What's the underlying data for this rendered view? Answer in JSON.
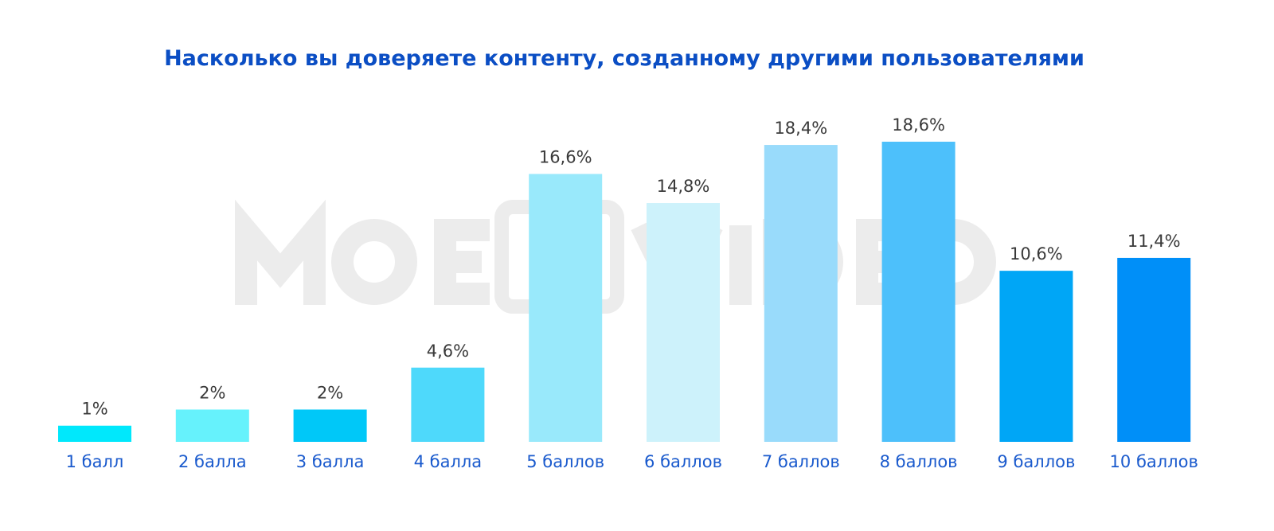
{
  "chart_data": {
    "type": "bar",
    "title": "Насколько вы доверяете контенту, созданному другими пользователями",
    "categories": [
      "1 балл",
      "2 балла",
      "3 балла",
      "4 балла",
      "5 баллов",
      "6 баллов",
      "7 баллов",
      "8 баллов",
      "9 баллов",
      "10 баллов"
    ],
    "values": [
      1,
      2,
      2,
      4.6,
      16.6,
      14.8,
      18.4,
      18.6,
      10.6,
      11.4
    ],
    "value_labels": [
      "1%",
      "2%",
      "2%",
      "4,6%",
      "16,6%",
      "14,8%",
      "18,4%",
      "18,6%",
      "10,6%",
      "11,4%"
    ],
    "colors": [
      "#00e8fc",
      "#66f2fc",
      "#00c8f8",
      "#4ed9fb",
      "#99e9fb",
      "#cdf2fb",
      "#99dbfb",
      "#4dc0fb",
      "#00a6f6",
      "#008ff8"
    ],
    "xlabel": "",
    "ylabel": "",
    "ylim": [
      0,
      20
    ],
    "grid": false,
    "legend": "none"
  },
  "watermark": "MOE VIDEO"
}
